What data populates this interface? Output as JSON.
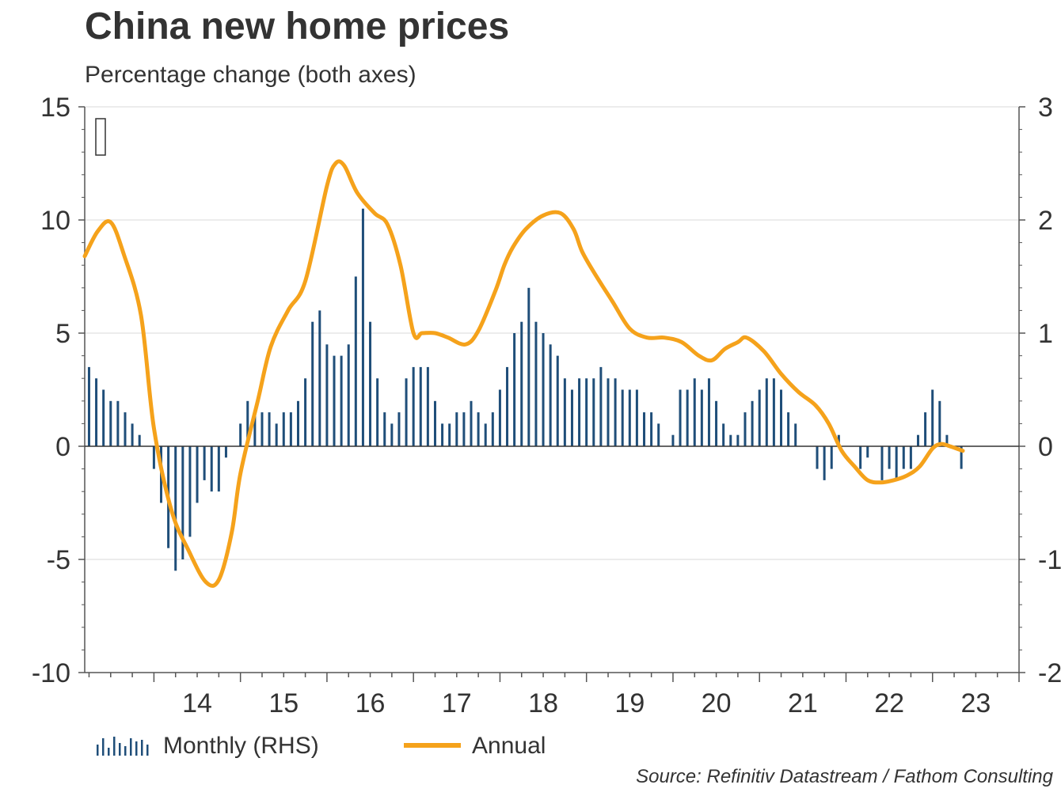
{
  "title": "China new home prices",
  "subtitle": "Percentage change (both axes)",
  "source": "Source: Refinitiv Datastream / Fathom Consulting",
  "colors": {
    "monthly": "#1f4e79",
    "annual": "#f5a21b",
    "grid": "#d9d9d9",
    "axis": "#555555"
  },
  "chart_data": {
    "type": "bar+line",
    "left_axis": {
      "min": -10,
      "max": 15,
      "ticks": [
        -10,
        -5,
        0,
        5,
        10,
        15
      ]
    },
    "right_axis": {
      "min": -2,
      "max": 3,
      "tick_labels": [
        "-2",
        "-1",
        "0",
        "1",
        "2",
        "3"
      ]
    },
    "x_tick_labels": [
      "14",
      "15",
      "16",
      "17",
      "18",
      "19",
      "20",
      "21",
      "22",
      "23"
    ],
    "x_range": [
      2013.2,
      2024.0
    ],
    "grid": true,
    "legend": {
      "position": "bottom-left"
    },
    "series": [
      {
        "name": "Monthly (RHS)",
        "type": "bar",
        "axis": "right",
        "start": 2013.25,
        "step": 0.08333,
        "values": [
          0.7,
          0.6,
          0.5,
          0.4,
          0.4,
          0.3,
          0.2,
          0.1,
          0,
          -0.2,
          -0.5,
          -0.9,
          -1.1,
          -1.0,
          -0.8,
          -0.5,
          -0.3,
          -0.4,
          -0.4,
          -0.1,
          0,
          0.2,
          0.4,
          0.3,
          0.3,
          0.3,
          0.2,
          0.3,
          0.3,
          0.4,
          0.6,
          1.1,
          1.2,
          0.9,
          0.8,
          0.8,
          0.9,
          1.5,
          2.1,
          1.1,
          0.6,
          0.3,
          0.2,
          0.3,
          0.6,
          0.7,
          0.7,
          0.7,
          0.4,
          0.2,
          0.2,
          0.3,
          0.3,
          0.4,
          0.3,
          0.2,
          0.3,
          0.5,
          0.7,
          1.0,
          1.1,
          1.4,
          1.1,
          1.0,
          0.9,
          0.8,
          0.6,
          0.5,
          0.6,
          0.6,
          0.6,
          0.7,
          0.6,
          0.6,
          0.5,
          0.5,
          0.5,
          0.3,
          0.3,
          0.2,
          0,
          0.1,
          0.5,
          0.5,
          0.6,
          0.5,
          0.6,
          0.4,
          0.2,
          0.1,
          0.1,
          0.3,
          0.4,
          0.5,
          0.6,
          0.6,
          0.5,
          0.3,
          0.2,
          0,
          0,
          -0.2,
          -0.3,
          -0.2,
          0.1,
          0,
          0,
          -0.2,
          -0.1,
          0,
          -0.3,
          -0.2,
          -0.3,
          -0.2,
          -0.2,
          0.1,
          0.3,
          0.5,
          0.4,
          0.1,
          0,
          -0.2
        ]
      },
      {
        "name": "Annual",
        "type": "line",
        "axis": "left",
        "x": [
          2013.2,
          2013.35,
          2013.5,
          2013.65,
          2013.85,
          2014.0,
          2014.2,
          2014.4,
          2014.6,
          2014.75,
          2014.9,
          2015.0,
          2015.2,
          2015.35,
          2015.55,
          2015.75,
          2016.0,
          2016.1,
          2016.2,
          2016.35,
          2016.55,
          2016.7,
          2016.85,
          2017.0,
          2017.1,
          2017.25,
          2017.4,
          2017.6,
          2017.75,
          2017.95,
          2018.05,
          2018.15,
          2018.3,
          2018.5,
          2018.7,
          2018.85,
          2018.95,
          2019.1,
          2019.3,
          2019.5,
          2019.7,
          2019.9,
          2020.1,
          2020.3,
          2020.45,
          2020.6,
          2020.75,
          2020.85,
          2021.05,
          2021.25,
          2021.45,
          2021.65,
          2021.8,
          2021.95,
          2022.1,
          2022.25,
          2022.4,
          2022.55,
          2022.7,
          2022.85,
          2023.0,
          2023.1,
          2023.2,
          2023.35
        ],
        "y": [
          8.4,
          9.5,
          9.9,
          8.5,
          5.8,
          0.8,
          -2.8,
          -4.6,
          -6.0,
          -5.9,
          -3.8,
          -1.2,
          2.0,
          4.4,
          6.0,
          7.3,
          11.5,
          12.5,
          12.4,
          11.2,
          10.3,
          9.8,
          8.0,
          5.0,
          5.0,
          5.0,
          4.8,
          4.5,
          5.1,
          6.9,
          8.0,
          8.8,
          9.6,
          10.2,
          10.3,
          9.6,
          8.6,
          7.6,
          6.4,
          5.2,
          4.8,
          4.8,
          4.6,
          4.0,
          3.8,
          4.3,
          4.6,
          4.8,
          4.2,
          3.2,
          2.4,
          1.8,
          1.0,
          -0.2,
          -0.9,
          -1.5,
          -1.6,
          -1.5,
          -1.3,
          -0.9,
          -0.1,
          0.1,
          0.0,
          -0.2
        ]
      }
    ]
  },
  "legend": {
    "monthly_label": "Monthly (RHS)",
    "annual_label": "Annual"
  }
}
